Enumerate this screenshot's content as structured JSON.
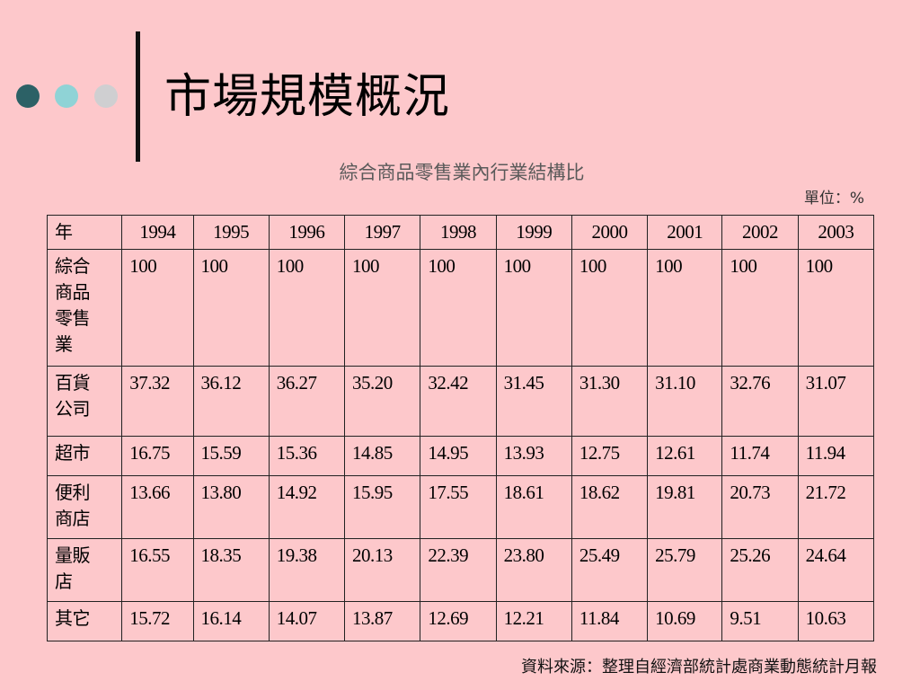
{
  "colors": {
    "dot1": "#2c6166",
    "dot2": "#8fd3d6",
    "dot3": "#cfcfd1",
    "background": "#fdc8cb"
  },
  "title": "市場規模概況",
  "subtitle": "綜合商品零售業內行業結構比",
  "unit": "單位：%",
  "table": {
    "header_label": "年",
    "years": [
      "1994",
      "1995",
      "1996",
      "1997",
      "1998",
      "1999",
      "2000",
      "2001",
      "2002",
      "2003"
    ],
    "rows": [
      {
        "label": "綜合商品零售業",
        "label_lines": [
          "綜合",
          "商品",
          "零售",
          "業"
        ],
        "values": [
          "100",
          "100",
          "100",
          "100",
          "100",
          "100",
          "100",
          "100",
          "100",
          "100"
        ]
      },
      {
        "label": "百貨公司",
        "label_lines": [
          "百貨",
          "公司"
        ],
        "values": [
          "37.32",
          "36.12",
          "36.27",
          "35.20",
          "32.42",
          "31.45",
          "31.30",
          "31.10",
          "32.76",
          "31.07"
        ]
      },
      {
        "label": "超市",
        "label_lines": [
          "超市"
        ],
        "values": [
          "16.75",
          "15.59",
          "15.36",
          "14.85",
          "14.95",
          "13.93",
          "12.75",
          "12.61",
          "11.74",
          "11.94"
        ]
      },
      {
        "label": "便利商店",
        "label_lines": [
          "便利",
          "商店"
        ],
        "values": [
          "13.66",
          "13.80",
          "14.92",
          "15.95",
          "17.55",
          "18.61",
          "18.62",
          "19.81",
          "20.73",
          "21.72"
        ]
      },
      {
        "label": "量販店",
        "label_lines": [
          "量販",
          "店"
        ],
        "values": [
          "16.55",
          "18.35",
          "19.38",
          "20.13",
          "22.39",
          "23.80",
          "25.49",
          "25.79",
          "25.26",
          "24.64"
        ]
      },
      {
        "label": "其它",
        "label_lines": [
          "其它"
        ],
        "values": [
          "15.72",
          "16.14",
          "14.07",
          "13.87",
          "12.69",
          "12.21",
          "11.84",
          "10.69",
          "9.51",
          "10.63"
        ]
      }
    ]
  },
  "source": "資料來源：整理自經濟部統計處商業動態統計月報"
}
